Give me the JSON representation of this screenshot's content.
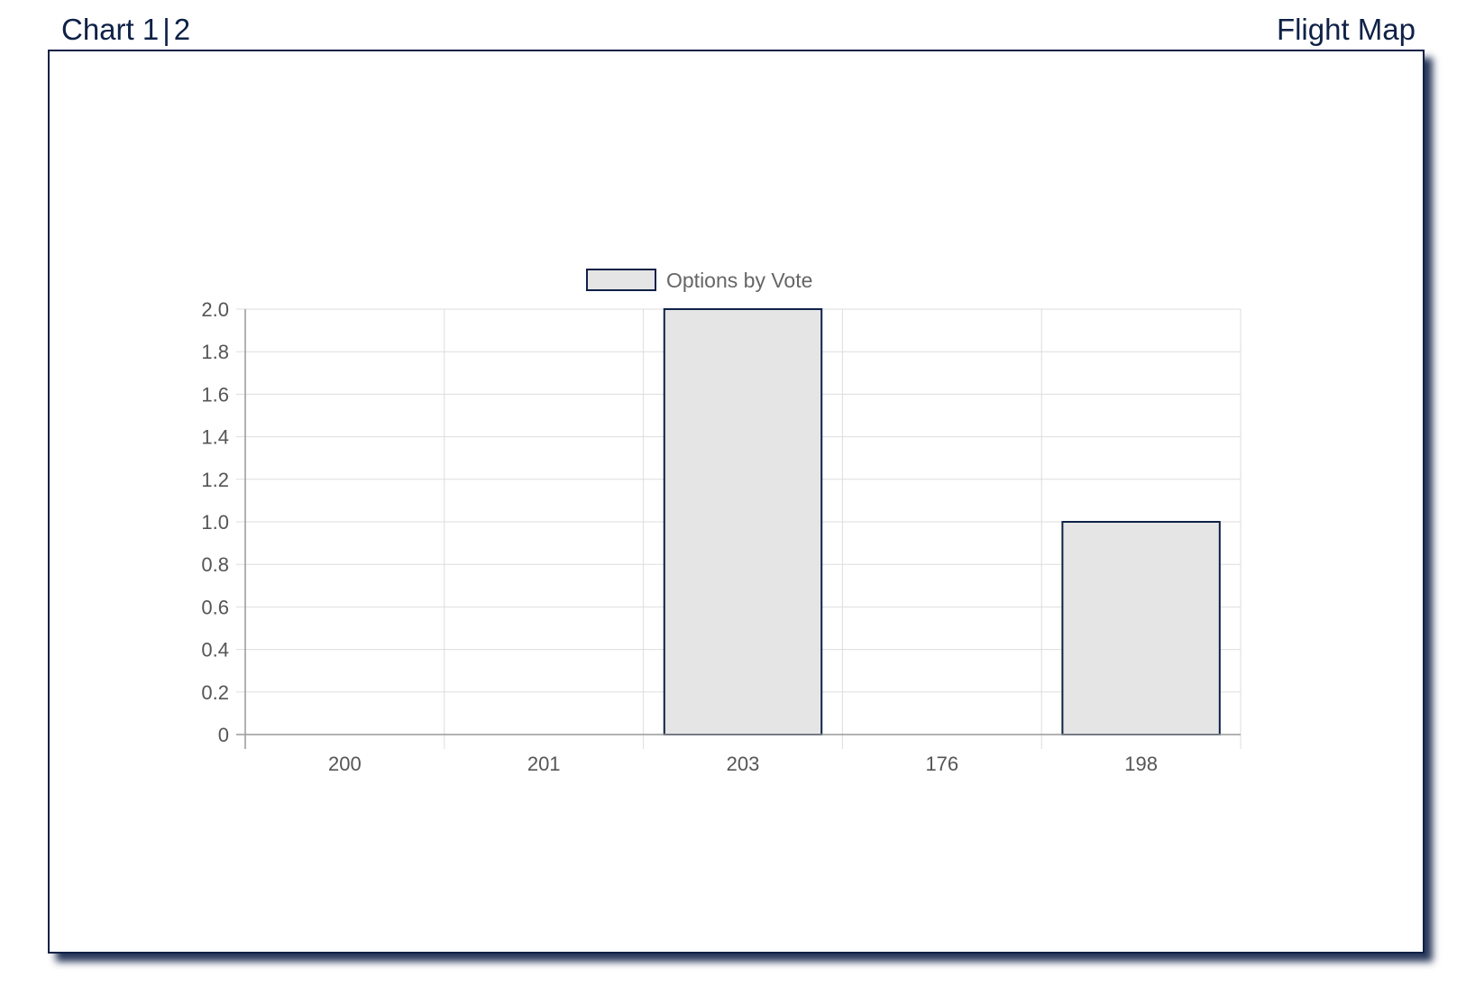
{
  "nav": {
    "chart_label": "Chart 1",
    "separator": "|",
    "chart2_label": "2",
    "flight_map_label": "Flight Map"
  },
  "colors": {
    "nav_text": "#0f2147",
    "bar_fill": "#e5e5e5",
    "bar_border": "#0f2147",
    "grid": "#dddddd",
    "tick_text": "#555555"
  },
  "chart_data": {
    "type": "bar",
    "categories": [
      "200",
      "201",
      "203",
      "176",
      "198"
    ],
    "series": [
      {
        "name": "Options by Vote",
        "values": [
          0,
          0,
          2,
          0,
          1
        ]
      }
    ],
    "ylim": [
      0,
      2
    ],
    "yticks": [
      0,
      0.2,
      0.4,
      0.6,
      0.8,
      1.0,
      1.2,
      1.4,
      1.6,
      1.8,
      2.0
    ],
    "ytick_labels": [
      "0",
      "0.2",
      "0.4",
      "0.6",
      "0.8",
      "1.0",
      "1.2",
      "1.4",
      "1.6",
      "1.8",
      "2.0"
    ],
    "grid": true,
    "legend_position": "top-center"
  }
}
